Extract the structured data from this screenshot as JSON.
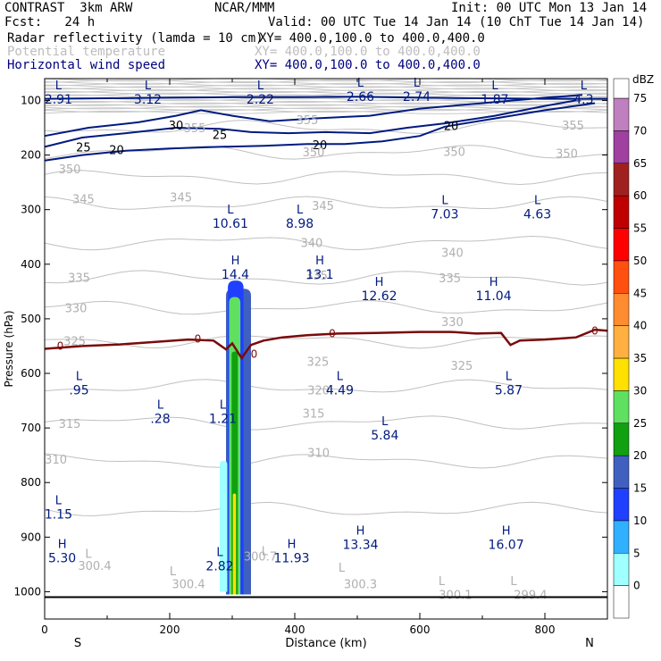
{
  "header": {
    "model": "CONTRAST  3km ARW",
    "org": "NCAR/MMM",
    "init": "Init: 00 UTC Mon 13 Jan 14",
    "fcst": "Fcst:   24 h",
    "valid": "Valid: 00 UTC Tue 14 Jan 14 (10 ChT Tue 14 Jan 14)",
    "fields": [
      {
        "name": "Radar reflectivity (lamda = 10 cm)",
        "xy": "XY= 400.0,100.0 to 400.0,400.0",
        "color": "#000000"
      },
      {
        "name": "Potential temperature",
        "xy": "XY= 400.0,100.0 to 400.0,400.0",
        "color": "#bdbdbd"
      },
      {
        "name": "Horizontal wind speed",
        "xy": "XY= 400.0,100.0 to 400.0,400.0",
        "color": "#000080"
      }
    ]
  },
  "chart_data": {
    "type": "cross-section",
    "xlabel": "Distance (km)",
    "ylabel": "Pressure (hPa)",
    "xlim": [
      0,
      900
    ],
    "ylim": [
      1050,
      60
    ],
    "xticks": [
      0,
      200,
      400,
      600,
      800
    ],
    "yticks": [
      100,
      200,
      300,
      400,
      500,
      600,
      700,
      800,
      900,
      1000
    ],
    "x_end_labels": {
      "left": "S",
      "right": "N"
    },
    "colorbar": {
      "unit": "dBZ",
      "ticks": [
        0,
        5,
        10,
        15,
        20,
        25,
        30,
        35,
        40,
        45,
        50,
        55,
        60,
        65,
        70,
        75
      ],
      "colors": [
        "#ffffff",
        "#a0ffff",
        "#30b0ff",
        "#2040ff",
        "#4060c0",
        "#10a010",
        "#60e060",
        "#ffe000",
        "#ffb040",
        "#ff8c30",
        "#ff5010",
        "#ff0000",
        "#c00000",
        "#a02020",
        "#a040a0",
        "#c080c0"
      ]
    },
    "reflectivity_columns": [
      {
        "x0": 290,
        "x1": 330,
        "ptop": 445,
        "pbot": 1005,
        "color": "#4060c0"
      },
      {
        "x0": 293,
        "x1": 318,
        "ptop": 430,
        "pbot": 1005,
        "color": "#2040ff"
      },
      {
        "x0": 295,
        "x1": 313,
        "ptop": 460,
        "pbot": 1005,
        "color": "#60e060"
      },
      {
        "x0": 299,
        "x1": 309,
        "ptop": 560,
        "pbot": 1005,
        "color": "#10a010"
      },
      {
        "x0": 301,
        "x1": 306,
        "ptop": 820,
        "pbot": 1005,
        "color": "#ffe000"
      },
      {
        "x0": 280,
        "x1": 292,
        "ptop": 760,
        "pbot": 1000,
        "color": "#a0ffff"
      }
    ],
    "theta_labels": [
      {
        "text": "355",
        "x": 240,
        "p": 150
      },
      {
        "text": "355",
        "x": 420,
        "p": 135
      },
      {
        "text": "355",
        "x": 845,
        "p": 145
      },
      {
        "text": "350",
        "x": 40,
        "p": 225
      },
      {
        "text": "350",
        "x": 430,
        "p": 194
      },
      {
        "text": "350",
        "x": 655,
        "p": 193
      },
      {
        "text": "350",
        "x": 835,
        "p": 197
      },
      {
        "text": "345",
        "x": 62,
        "p": 280
      },
      {
        "text": "345",
        "x": 218,
        "p": 277
      },
      {
        "text": "345",
        "x": 445,
        "p": 292
      },
      {
        "text": "340",
        "x": 427,
        "p": 360
      },
      {
        "text": "340",
        "x": 652,
        "p": 378
      },
      {
        "text": "335",
        "x": 55,
        "p": 424
      },
      {
        "text": "335",
        "x": 435,
        "p": 420
      },
      {
        "text": "335",
        "x": 648,
        "p": 425
      },
      {
        "text": "330",
        "x": 50,
        "p": 480
      },
      {
        "text": "330",
        "x": 652,
        "p": 505
      },
      {
        "text": "325",
        "x": 48,
        "p": 540
      },
      {
        "text": "325",
        "x": 437,
        "p": 578
      },
      {
        "text": "325",
        "x": 667,
        "p": 585
      },
      {
        "text": "320",
        "x": 438,
        "p": 630
      },
      {
        "text": "315",
        "x": 40,
        "p": 692
      },
      {
        "text": "315",
        "x": 430,
        "p": 673
      },
      {
        "text": "310",
        "x": 18,
        "p": 757
      },
      {
        "text": "310",
        "x": 438,
        "p": 745
      },
      {
        "text": "300.4",
        "x": 80,
        "p": 952
      },
      {
        "text": "300.4",
        "x": 230,
        "p": 985
      },
      {
        "text": "300.7",
        "x": 345,
        "p": 935
      },
      {
        "text": "300.3",
        "x": 505,
        "p": 985
      },
      {
        "text": "300.1",
        "x": 657,
        "p": 1005
      },
      {
        "text": "299.4",
        "x": 777,
        "p": 1005
      }
    ],
    "theta_lows": [
      {
        "text": "L",
        "x": 70,
        "p": 930
      },
      {
        "text": "L",
        "x": 205,
        "p": 962
      },
      {
        "text": "L",
        "x": 352,
        "p": 925
      },
      {
        "text": "L",
        "x": 475,
        "p": 955
      },
      {
        "text": "L",
        "x": 635,
        "p": 980
      },
      {
        "text": "L",
        "x": 750,
        "p": 980
      }
    ],
    "wind_contours": [
      {
        "label": "30",
        "x": 210,
        "p": 145
      },
      {
        "label": "25",
        "x": 280,
        "p": 162
      },
      {
        "label": "25",
        "x": 62,
        "p": 185
      },
      {
        "label": "20",
        "x": 115,
        "p": 190
      },
      {
        "label": "20",
        "x": 440,
        "p": 181
      },
      {
        "label": "20",
        "x": 650,
        "p": 146
      }
    ],
    "wind_extrema": [
      {
        "type": "L",
        "value": "2.91",
        "x": 22,
        "p": 80
      },
      {
        "type": "L",
        "value": "3.12",
        "x": 165,
        "p": 80
      },
      {
        "type": "L",
        "value": "2.22",
        "x": 345,
        "p": 80
      },
      {
        "type": "L",
        "value": "2.66",
        "x": 505,
        "p": 75
      },
      {
        "type": "L",
        "value": "2.74",
        "x": 595,
        "p": 75
      },
      {
        "type": "L",
        "value": "1.87",
        "x": 720,
        "p": 80
      },
      {
        "type": "L",
        "value": "4.3",
        "x": 862,
        "p": 80
      },
      {
        "type": "L",
        "value": "10.61",
        "x": 297,
        "p": 307
      },
      {
        "type": "L",
        "value": "8.98",
        "x": 408,
        "p": 307
      },
      {
        "type": "L",
        "value": "7.03",
        "x": 640,
        "p": 290
      },
      {
        "type": "L",
        "value": "4.63",
        "x": 788,
        "p": 290
      },
      {
        "type": "H",
        "value": "14.4",
        "x": 305,
        "p": 400
      },
      {
        "type": "H",
        "value": "13.1",
        "x": 440,
        "p": 400
      },
      {
        "type": "H",
        "value": "12.62",
        "x": 535,
        "p": 440
      },
      {
        "type": "H",
        "value": "11.04",
        "x": 718,
        "p": 440
      },
      {
        "type": "L",
        "value": ".95",
        "x": 55,
        "p": 612
      },
      {
        "type": "L",
        "value": ".28",
        "x": 185,
        "p": 665
      },
      {
        "type": "L",
        "value": "1.21",
        "x": 285,
        "p": 665
      },
      {
        "type": "L",
        "value": "4.49",
        "x": 472,
        "p": 612
      },
      {
        "type": "L",
        "value": "5.87",
        "x": 742,
        "p": 612
      },
      {
        "type": "L",
        "value": "5.84",
        "x": 544,
        "p": 695
      },
      {
        "type": "L",
        "value": "1.15",
        "x": 22,
        "p": 840
      },
      {
        "type": "H",
        "value": "5.30",
        "x": 28,
        "p": 920
      },
      {
        "type": "L",
        "value": "2.82",
        "x": 280,
        "p": 935
      },
      {
        "type": "H",
        "value": "11.93",
        "x": 395,
        "p": 920
      },
      {
        "type": "H",
        "value": "13.34",
        "x": 505,
        "p": 895
      },
      {
        "type": "H",
        "value": "16.07",
        "x": 738,
        "p": 895
      }
    ],
    "freezing_level": {
      "label": "0",
      "label_positions": [
        {
          "x": 25,
          "p": 550
        },
        {
          "x": 245,
          "p": 537
        },
        {
          "x": 335,
          "p": 565
        },
        {
          "x": 460,
          "p": 527
        },
        {
          "x": 880,
          "p": 522
        }
      ],
      "points": [
        [
          0,
          555
        ],
        [
          60,
          550
        ],
        [
          120,
          547
        ],
        [
          180,
          542
        ],
        [
          230,
          538
        ],
        [
          270,
          540
        ],
        [
          290,
          556
        ],
        [
          300,
          545
        ],
        [
          315,
          572
        ],
        [
          330,
          548
        ],
        [
          350,
          540
        ],
        [
          380,
          534
        ],
        [
          420,
          530
        ],
        [
          470,
          527
        ],
        [
          530,
          526
        ],
        [
          600,
          524
        ],
        [
          650,
          524
        ],
        [
          690,
          527
        ],
        [
          730,
          526
        ],
        [
          745,
          548
        ],
        [
          760,
          540
        ],
        [
          800,
          538
        ],
        [
          850,
          534
        ],
        [
          880,
          520
        ],
        [
          900,
          522
        ]
      ]
    }
  }
}
